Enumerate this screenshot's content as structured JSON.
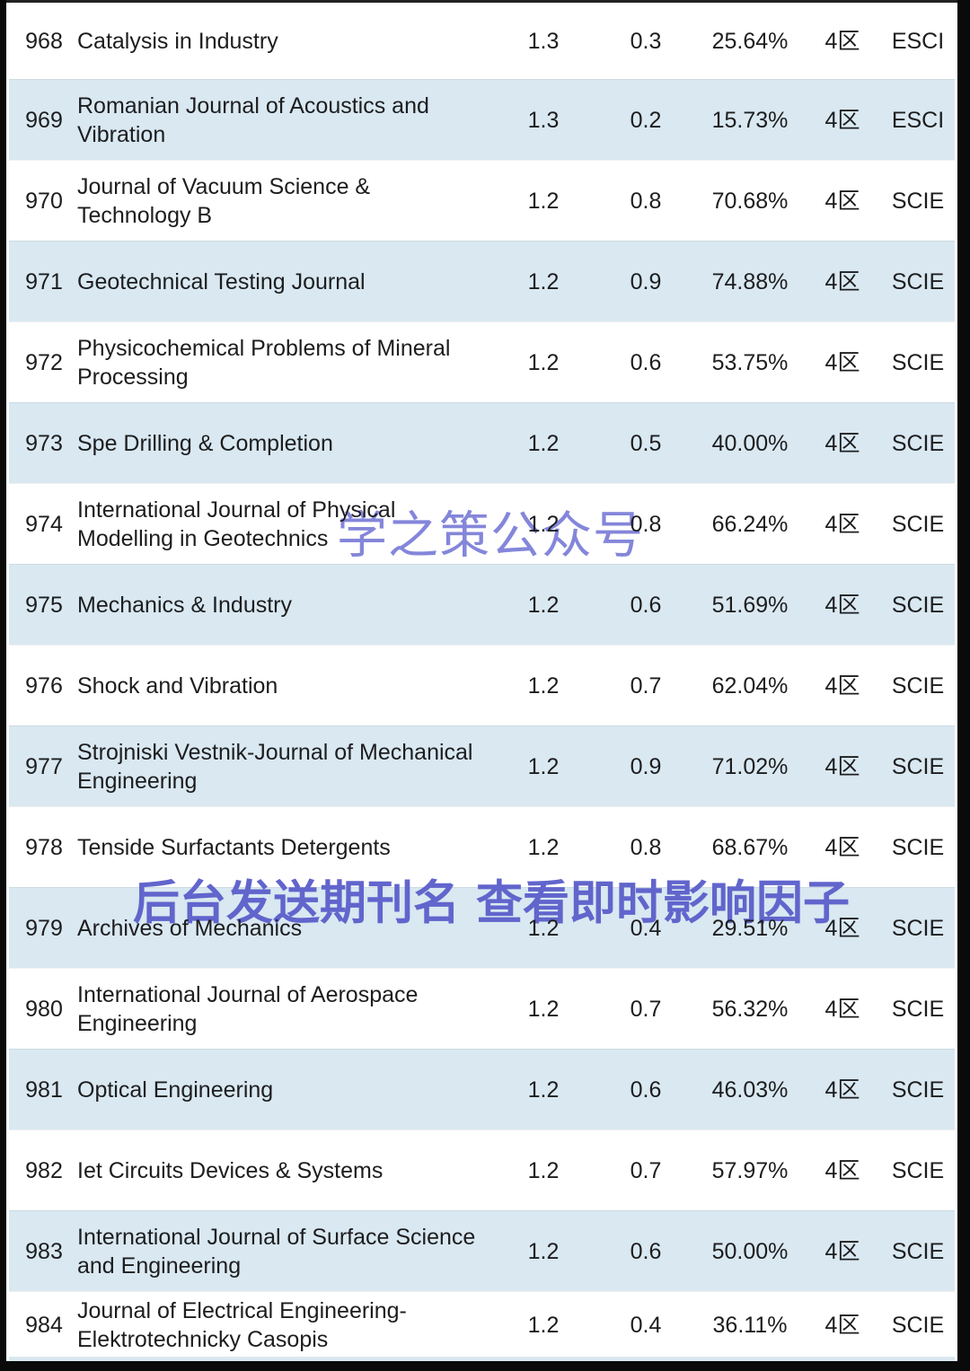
{
  "colors": {
    "row_blue": "#d9e8f1",
    "text": "#1d1d1f",
    "border": "#0a0a0a",
    "watermark_center": "#8486da",
    "watermark_banner": "#6165cc"
  },
  "watermarks": {
    "center": {
      "text": "学之策公众号"
    },
    "banner": {
      "text": "后台发送期刊名 查看即时影响因子"
    }
  },
  "table": {
    "rows": [
      {
        "rank": "968",
        "name": "Catalysis in Industry",
        "impact_factor": "1.3",
        "metric": "0.3",
        "percentile": "25.64%",
        "zone": "4区",
        "index": "ESCI"
      },
      {
        "rank": "969",
        "name": "Romanian Journal of Acoustics and\nVibration",
        "impact_factor": "1.3",
        "metric": "0.2",
        "percentile": "15.73%",
        "zone": "4区",
        "index": "ESCI"
      },
      {
        "rank": "970",
        "name": "Journal of Vacuum Science &\nTechnology B",
        "impact_factor": "1.2",
        "metric": "0.8",
        "percentile": "70.68%",
        "zone": "4区",
        "index": "SCIE"
      },
      {
        "rank": "971",
        "name": "Geotechnical Testing Journal",
        "impact_factor": "1.2",
        "metric": "0.9",
        "percentile": "74.88%",
        "zone": "4区",
        "index": "SCIE"
      },
      {
        "rank": "972",
        "name": "Physicochemical Problems of Mineral\nProcessing",
        "impact_factor": "1.2",
        "metric": "0.6",
        "percentile": "53.75%",
        "zone": "4区",
        "index": "SCIE"
      },
      {
        "rank": "973",
        "name": "Spe Drilling & Completion",
        "impact_factor": "1.2",
        "metric": "0.5",
        "percentile": "40.00%",
        "zone": "4区",
        "index": "SCIE"
      },
      {
        "rank": "974",
        "name": "International Journal of Physical\nModelling in Geotechnics",
        "impact_factor": "1.2",
        "metric": "0.8",
        "percentile": "66.24%",
        "zone": "4区",
        "index": "SCIE"
      },
      {
        "rank": "975",
        "name": "Mechanics & Industry",
        "impact_factor": "1.2",
        "metric": "0.6",
        "percentile": "51.69%",
        "zone": "4区",
        "index": "SCIE"
      },
      {
        "rank": "976",
        "name": "Shock and Vibration",
        "impact_factor": "1.2",
        "metric": "0.7",
        "percentile": "62.04%",
        "zone": "4区",
        "index": "SCIE"
      },
      {
        "rank": "977",
        "name": "Strojniski Vestnik-Journal of Mechanical\nEngineering",
        "impact_factor": "1.2",
        "metric": "0.9",
        "percentile": "71.02%",
        "zone": "4区",
        "index": "SCIE"
      },
      {
        "rank": "978",
        "name": "Tenside Surfactants Detergents",
        "impact_factor": "1.2",
        "metric": "0.8",
        "percentile": "68.67%",
        "zone": "4区",
        "index": "SCIE"
      },
      {
        "rank": "979",
        "name": "Archives of Mechanics",
        "impact_factor": "1.2",
        "metric": "0.4",
        "percentile": "29.51%",
        "zone": "4区",
        "index": "SCIE"
      },
      {
        "rank": "980",
        "name": "International Journal of Aerospace\nEngineering",
        "impact_factor": "1.2",
        "metric": "0.7",
        "percentile": "56.32%",
        "zone": "4区",
        "index": "SCIE"
      },
      {
        "rank": "981",
        "name": "Optical Engineering",
        "impact_factor": "1.2",
        "metric": "0.6",
        "percentile": "46.03%",
        "zone": "4区",
        "index": "SCIE"
      },
      {
        "rank": "982",
        "name": "Iet Circuits Devices & Systems",
        "impact_factor": "1.2",
        "metric": "0.7",
        "percentile": "57.97%",
        "zone": "4区",
        "index": "SCIE"
      },
      {
        "rank": "983",
        "name": "International Journal of Surface Science\nand Engineering",
        "impact_factor": "1.2",
        "metric": "0.6",
        "percentile": "50.00%",
        "zone": "4区",
        "index": "SCIE"
      },
      {
        "rank": "984",
        "name": "Journal of Electrical Engineering-\nElektrotechnicky Casopis",
        "impact_factor": "1.2",
        "metric": "0.4",
        "percentile": "36.11%",
        "zone": "4区",
        "index": "SCIE"
      }
    ]
  }
}
